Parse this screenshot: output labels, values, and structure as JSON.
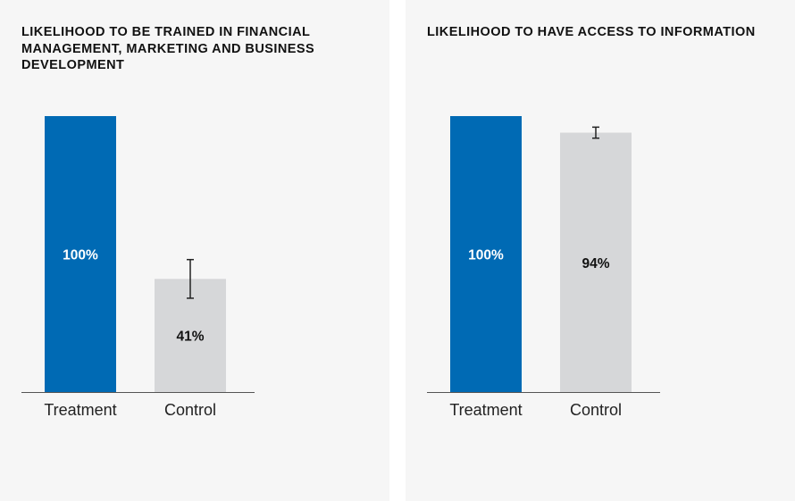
{
  "colors": {
    "treatment": "#006ab4",
    "control": "#d6d7d9",
    "treatment_label": "#ffffff",
    "control_label": "#111111",
    "axis": "#555555",
    "error_bar": "#222222",
    "tick_label": "#222222"
  },
  "chart_data": [
    {
      "type": "bar",
      "title": "LIKELIHOOD TO BE TRAINED IN FINANCIAL MANAGEMENT, MARKETING AND BUSINESS DEVELOPMENT",
      "categories": [
        "Treatment",
        "Control"
      ],
      "values": [
        100,
        41
      ],
      "value_labels": [
        "100%",
        "41%"
      ],
      "error_bars": [
        null,
        [
          34,
          48
        ]
      ],
      "ylim": [
        0,
        100
      ],
      "grid": false,
      "legend": "none"
    },
    {
      "type": "bar",
      "title": "LIKELIHOOD TO HAVE ACCESS TO INFORMATION",
      "categories": [
        "Treatment",
        "Control"
      ],
      "values": [
        100,
        94
      ],
      "value_labels": [
        "100%",
        "94%"
      ],
      "error_bars": [
        null,
        [
          92,
          96
        ]
      ],
      "ylim": [
        0,
        100
      ],
      "grid": false,
      "legend": "none"
    }
  ]
}
